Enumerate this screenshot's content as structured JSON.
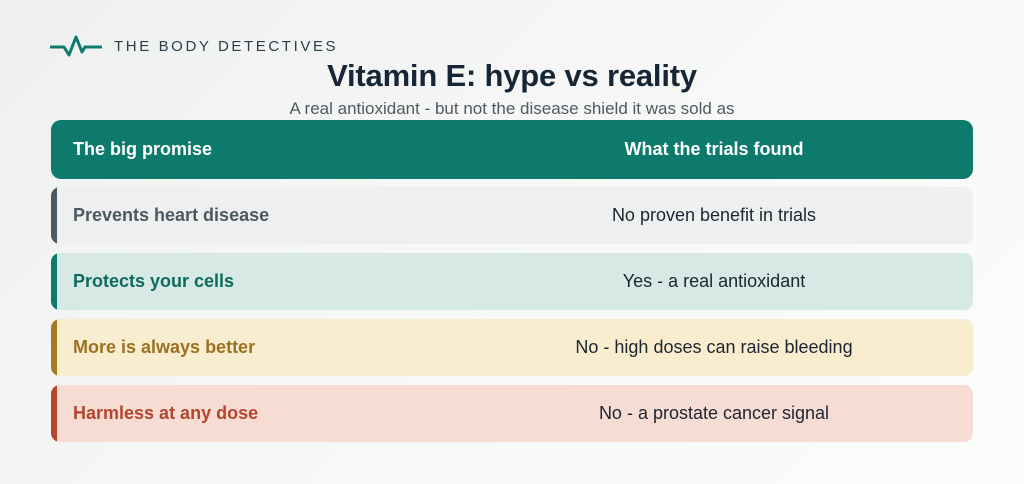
{
  "brand": {
    "name": "THE BODY DETECTIVES",
    "icon": "heartbeat-pulse-icon",
    "color": "#0e7a6c"
  },
  "title": "Vitamin E: hype vs reality",
  "subtitle": "A real antioxidant - but not the disease shield it was sold as",
  "table": {
    "headers": [
      "The big promise",
      "What the trials found"
    ],
    "header_color": "#0e7a6c",
    "rows": [
      {
        "promise": "Prevents heart disease",
        "finding": "No proven benefit in trials",
        "accent": "#4c5961",
        "text_color": "#4c5961",
        "background": "#eef0ef"
      },
      {
        "promise": "Protects your cells",
        "finding": "Yes - a real antioxidant",
        "accent": "#0e7a6c",
        "text_color": "#0e6b5e",
        "background": "#d6e9e5"
      },
      {
        "promise": "More is always better",
        "finding": "No - high doses can raise bleeding",
        "accent": "#a67a22",
        "text_color": "#9c7122",
        "background": "#f9edcf"
      },
      {
        "promise": "Harmless at any dose",
        "finding": "No - a prostate cancer signal",
        "accent": "#b5452d",
        "text_color": "#b5452d",
        "background": "#f7dcd3"
      }
    ]
  }
}
